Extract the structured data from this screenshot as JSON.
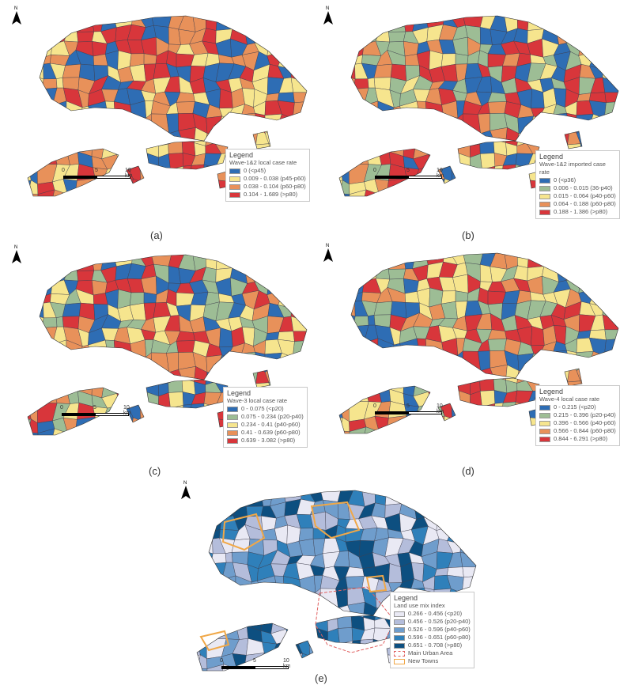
{
  "north_label": "N",
  "scale": {
    "ticks": [
      "0",
      "5",
      "10 km"
    ]
  },
  "panels": [
    {
      "id": "a",
      "caption": "(a)",
      "legend_title": "Legend",
      "legend_subtitle": "Wave-1&2 local case rate",
      "classes": [
        {
          "label": "0 (<p45)",
          "color": "#2e6db4"
        },
        {
          "label": "0.009 - 0.038 (p45-p60)",
          "color": "#f6e58e"
        },
        {
          "label": "0.038 - 0.104 (p60-p80)",
          "color": "#e8915a"
        },
        {
          "label": "0.104 - 1.689 (>p80)",
          "color": "#d8363b"
        }
      ]
    },
    {
      "id": "b",
      "caption": "(b)",
      "legend_title": "Legend",
      "legend_subtitle": "Wave-1&2 imported case rate",
      "classes": [
        {
          "label": "0 (<p36)",
          "color": "#2e6db4"
        },
        {
          "label": "0.006 - 0.015 (36-p40)",
          "color": "#9dbd95"
        },
        {
          "label": "0.015 - 0.064 (p40-p60)",
          "color": "#f6e58e"
        },
        {
          "label": "0.064 - 0.188 (p60-p80)",
          "color": "#e8915a"
        },
        {
          "label": "0.188 - 1.386 (>p80)",
          "color": "#d8363b"
        }
      ]
    },
    {
      "id": "c",
      "caption": "(c)",
      "legend_title": "Legend",
      "legend_subtitle": "Wave-3 local case rate",
      "classes": [
        {
          "label": "0 - 0.075 (<p20)",
          "color": "#2e6db4"
        },
        {
          "label": "0.075 - 0.234 (p20-p40)",
          "color": "#9dbd95"
        },
        {
          "label": "0.234 - 0.41 (p40-p60)",
          "color": "#f6e58e"
        },
        {
          "label": "0.41 - 0.639 (p60-p80)",
          "color": "#e8915a"
        },
        {
          "label": "0.639 - 3.082 (>p80)",
          "color": "#d8363b"
        }
      ]
    },
    {
      "id": "d",
      "caption": "(d)",
      "legend_title": "Legend",
      "legend_subtitle": "Wave-4 local case rate",
      "classes": [
        {
          "label": "0 - 0.215 (<p20)",
          "color": "#2e6db4"
        },
        {
          "label": "0.215 - 0.396 (p20-p40)",
          "color": "#9dbd95"
        },
        {
          "label": "0.396 - 0.566 (p40-p60)",
          "color": "#f6e58e"
        },
        {
          "label": "0.566 - 0.844 (p60-p80)",
          "color": "#e8915a"
        },
        {
          "label": "0.844 - 6.291 (>p80)",
          "color": "#d8363b"
        }
      ]
    },
    {
      "id": "e",
      "caption": "(e)",
      "legend_title": "Legend",
      "legend_subtitle": "Land use mix index",
      "classes": [
        {
          "label": "0.266 - 0.456 (<p20)",
          "color": "#e9e9f4"
        },
        {
          "label": "0.456 - 0.526 (p20-p40)",
          "color": "#b4bddb"
        },
        {
          "label": "0.526 - 0.596 (p40-p60)",
          "color": "#6f9dcc"
        },
        {
          "label": "0.596 - 0.651 (p60-p80)",
          "color": "#2f80ba"
        },
        {
          "label": "0.651 - 0.708 (>p80)",
          "color": "#0d4f80"
        }
      ],
      "extra": [
        {
          "label": "Main Urban Area",
          "color": "#e06060",
          "style": "dashed"
        },
        {
          "label": "New Towns",
          "color": "#f0a848",
          "style": "solid"
        }
      ]
    }
  ]
}
